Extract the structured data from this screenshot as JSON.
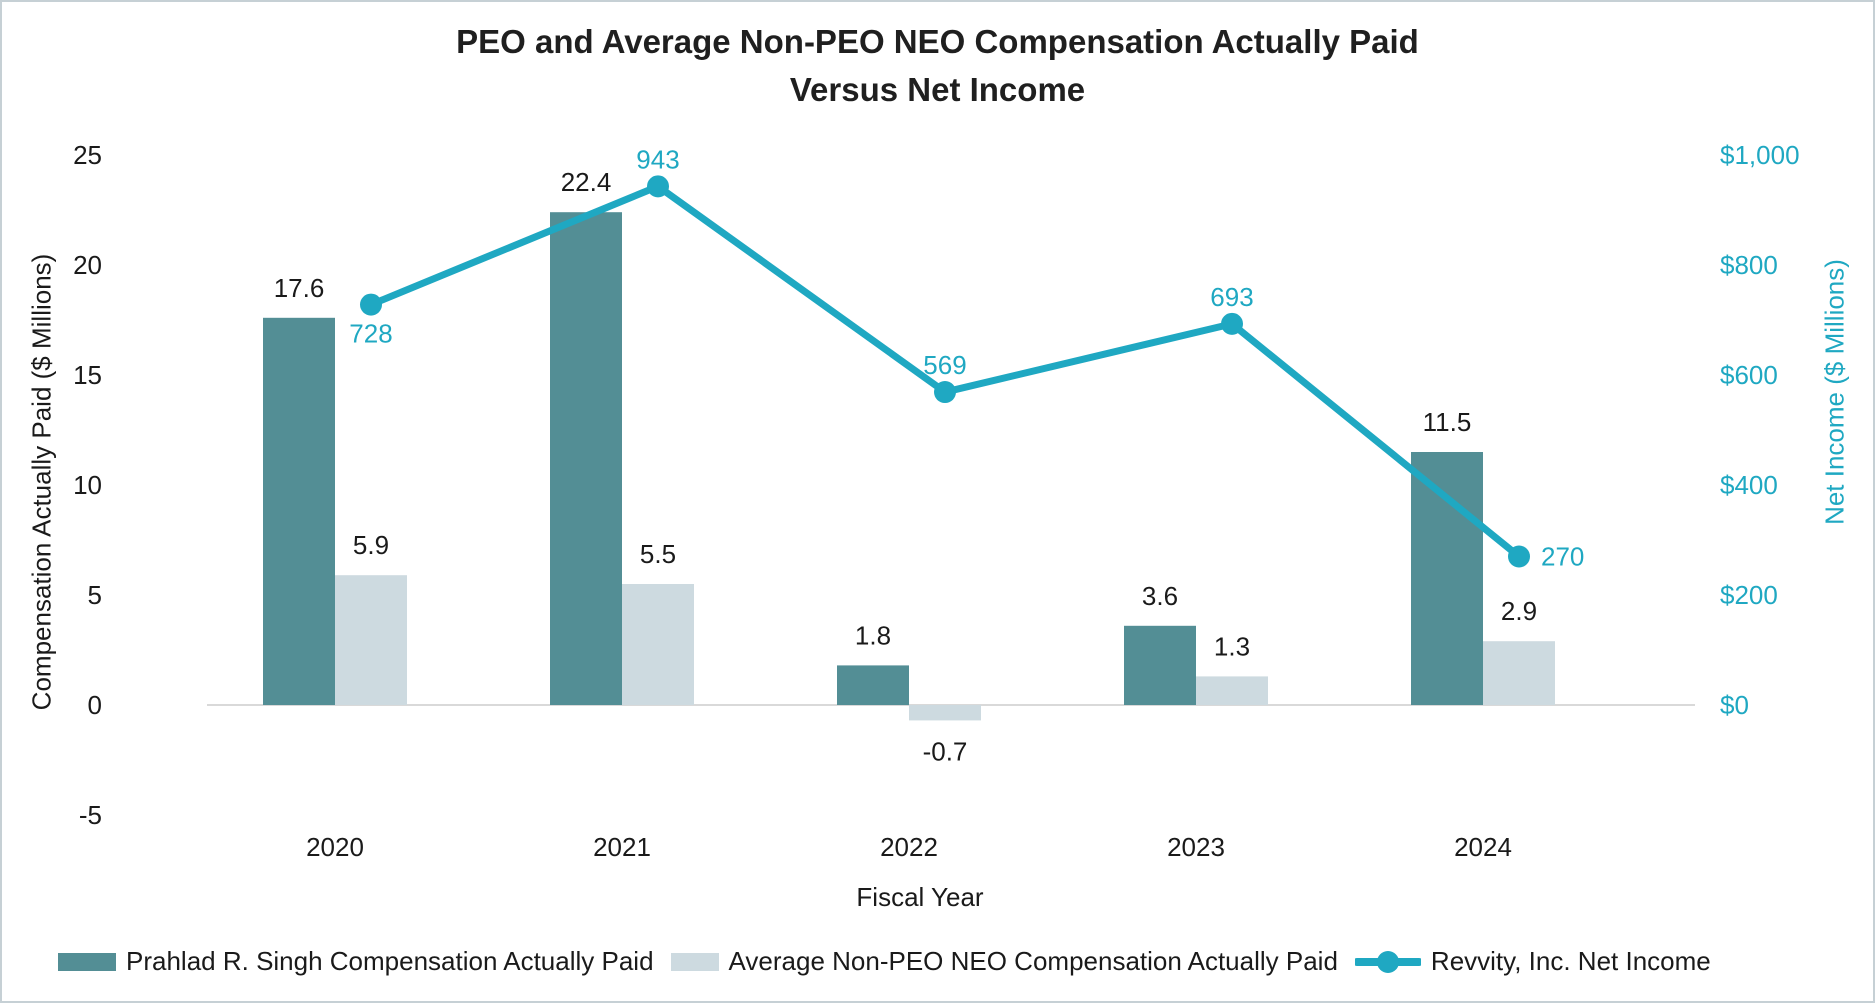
{
  "title": {
    "line1": "PEO and Average Non-PEO NEO Compensation Actually Paid",
    "line2": "Versus Net Income"
  },
  "chart_data": {
    "type": "combo-bar-line",
    "categories": [
      "2020",
      "2021",
      "2022",
      "2023",
      "2024"
    ],
    "x_axis_title": "Fiscal Year",
    "left_axis": {
      "title": "Compensation Actually Paid ($ Millions)",
      "tick_labels": [
        "25",
        "20",
        "15",
        "10",
        "5",
        "0",
        "-5"
      ],
      "tick_values": [
        25,
        20,
        15,
        10,
        5,
        0,
        -5
      ],
      "range": [
        -5,
        25
      ]
    },
    "right_axis": {
      "title": "Net Income ($ Millions)",
      "tick_labels": [
        "$1,000",
        "$800",
        "$600",
        "$400",
        "$200",
        "$0"
      ],
      "tick_values": [
        1000,
        800,
        600,
        400,
        200,
        0
      ],
      "range": [
        0,
        1000
      ]
    },
    "series": [
      {
        "name": "Prahlad R. Singh Compensation Actually Paid",
        "type": "bar",
        "axis": "left",
        "color": "#538E95",
        "values": [
          17.6,
          22.4,
          1.8,
          3.6,
          11.5
        ],
        "data_labels": [
          "17.6",
          "22.4",
          "1.8",
          "3.6",
          "11.5"
        ]
      },
      {
        "name": "Average Non-PEO NEO Compensation Actually Paid",
        "type": "bar",
        "axis": "left",
        "color": "#CDDAE0",
        "values": [
          5.9,
          5.5,
          -0.7,
          1.3,
          2.9
        ],
        "data_labels": [
          "5.9",
          "5.5",
          "-0.7",
          "1.3",
          "2.9"
        ]
      },
      {
        "name": "Revvity, Inc. Net Income",
        "type": "line",
        "axis": "right",
        "color": "#1FA8C2",
        "values": [
          728,
          943,
          569,
          693,
          270
        ],
        "data_labels": [
          "728",
          "943",
          "569",
          "693",
          "270"
        ],
        "data_label_positions": [
          "below",
          "above",
          "above",
          "above",
          "right"
        ]
      }
    ],
    "legend_position": "bottom",
    "grid": "zero-baseline-only"
  },
  "colors": {
    "bar_peo": "#538E95",
    "bar_neo": "#CDDAE0",
    "net_income_line": "#1FA8C2",
    "text_dark": "#1A1A1A",
    "zero_line": "#D9D9D9",
    "frame_border": "#C6D0D5"
  }
}
